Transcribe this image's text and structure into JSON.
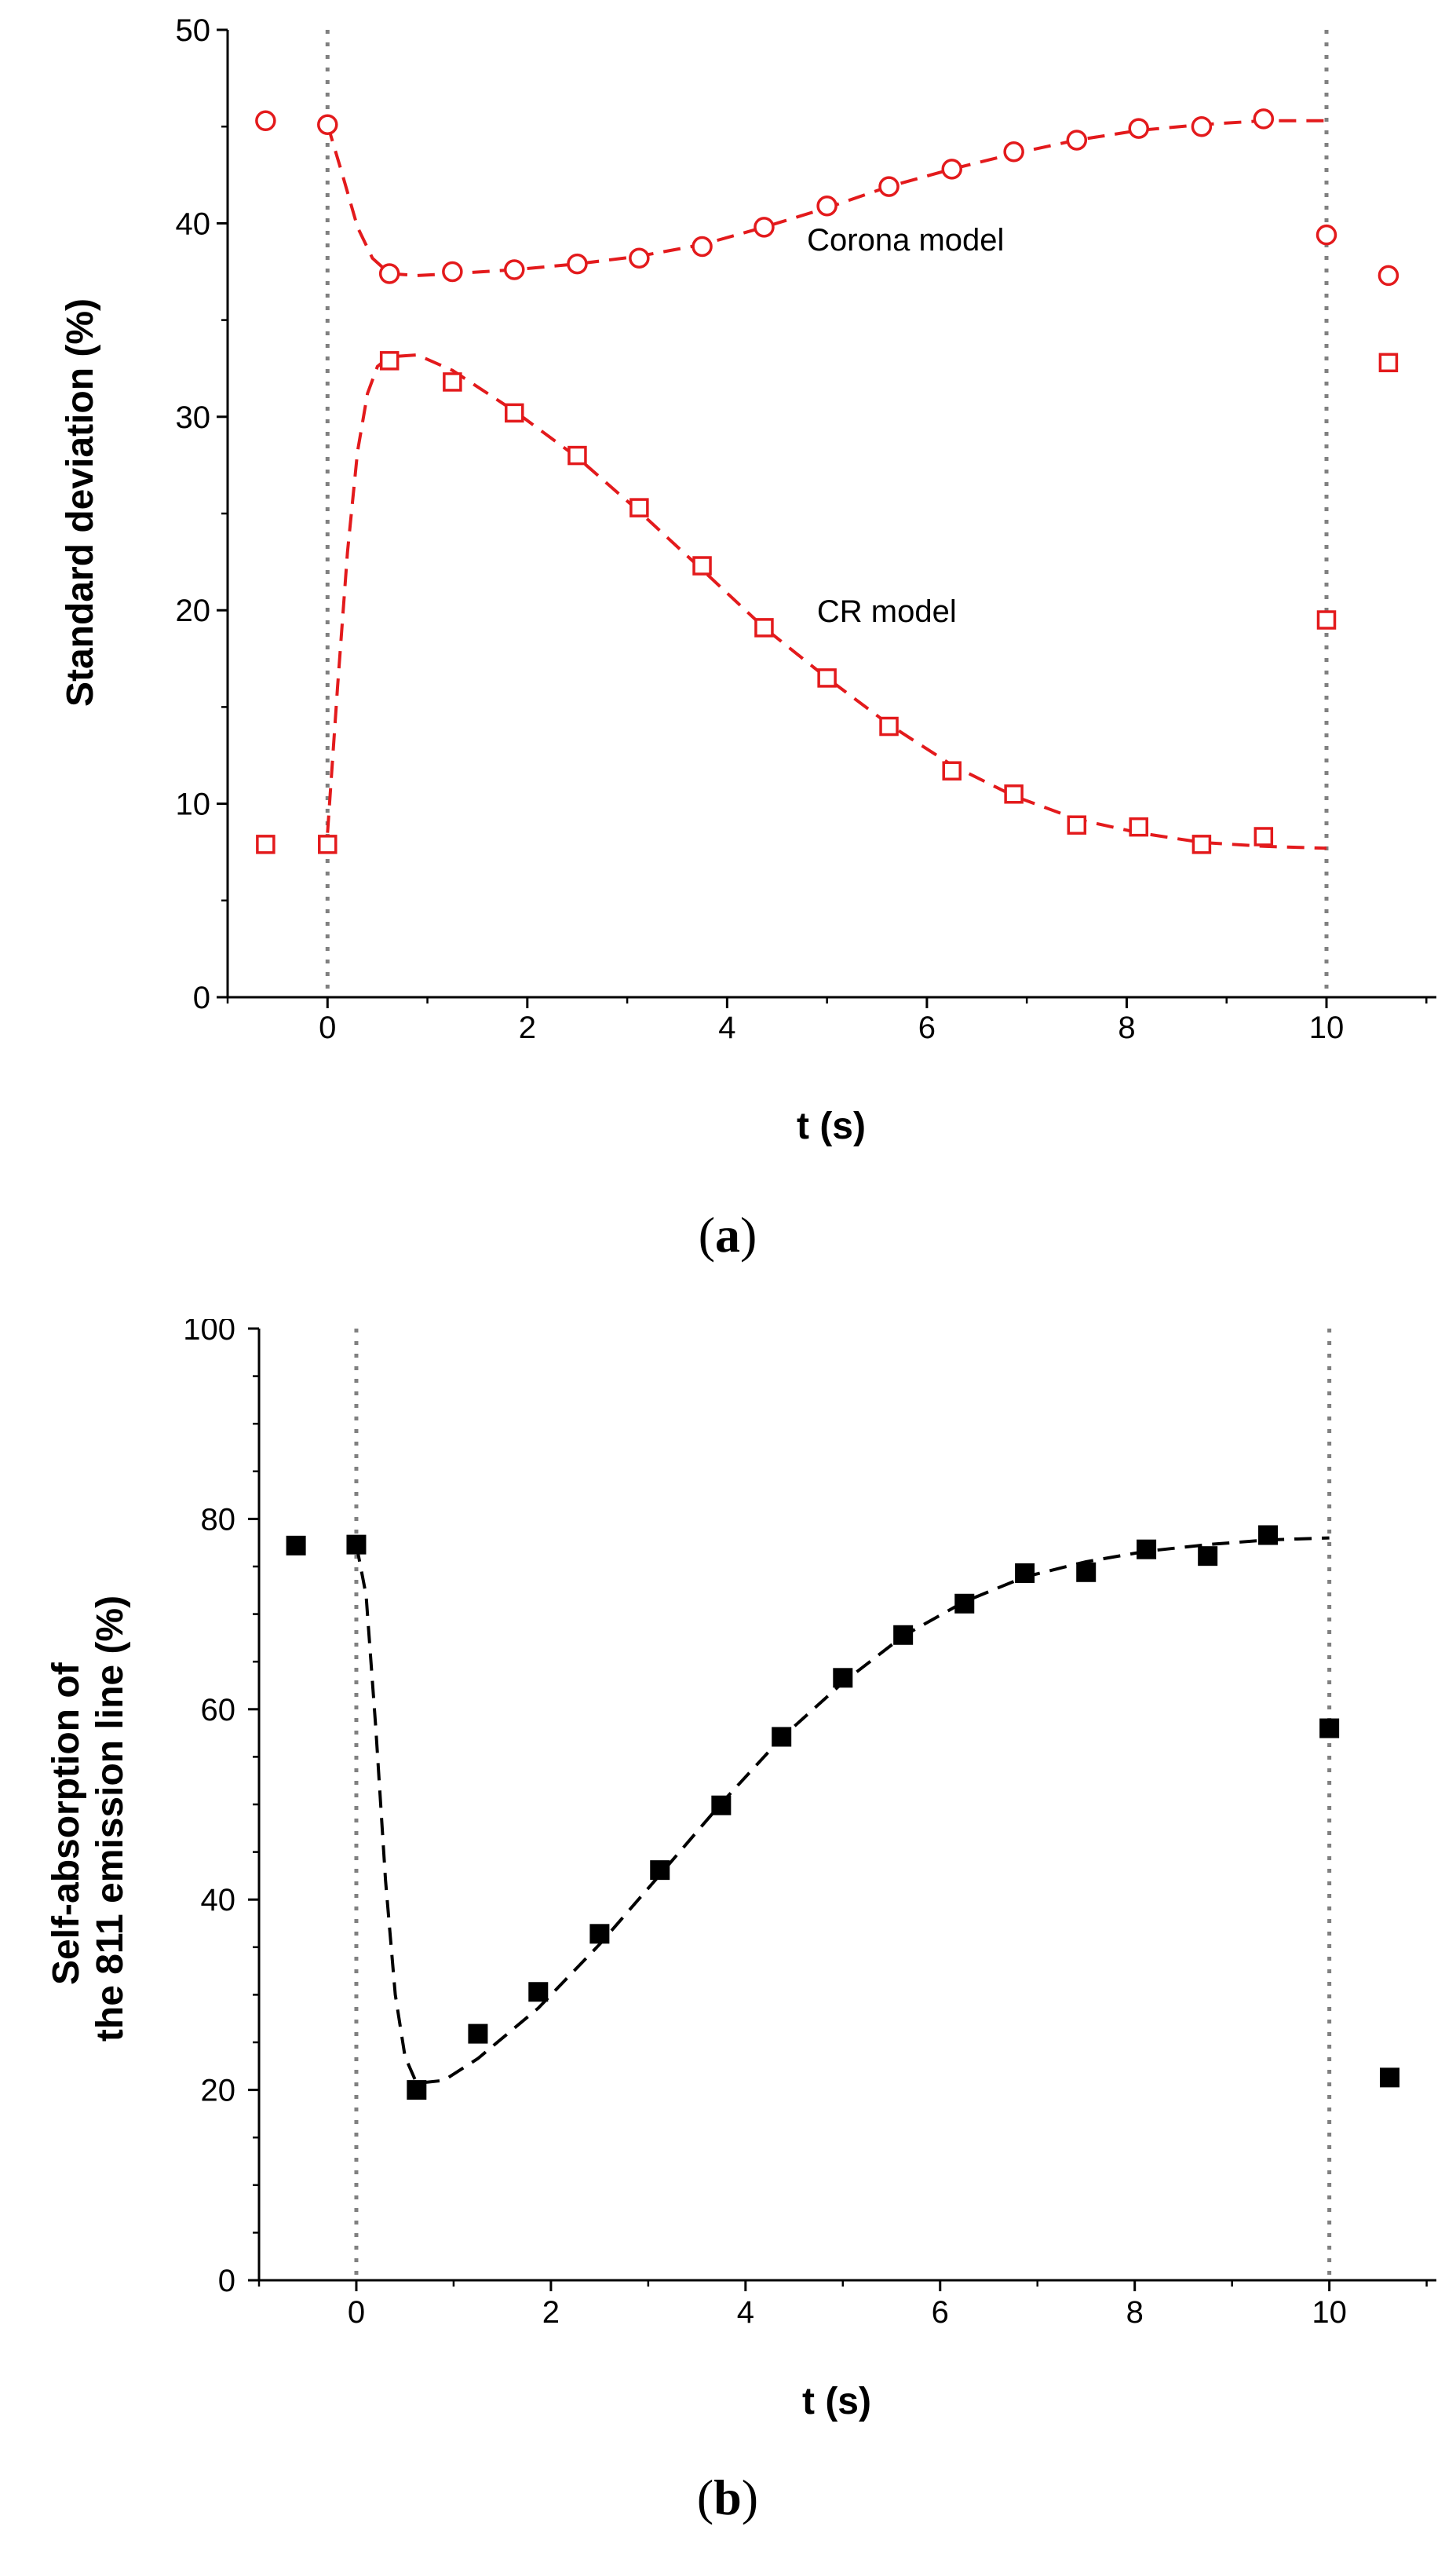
{
  "chart_data": [
    {
      "id": "a",
      "type": "scatter",
      "panel_label": "a",
      "xlabel": "t (s)",
      "ylabel": "Standard deviation (%)",
      "xlim": [
        -1,
        11.1
      ],
      "ylim": [
        0,
        50
      ],
      "xticks": [
        0,
        2,
        4,
        6,
        8,
        10
      ],
      "yticks": [
        0,
        10,
        20,
        30,
        40,
        50
      ],
      "grid": false,
      "vlines": [
        0,
        10
      ],
      "series": [
        {
          "name": "Corona model",
          "marker": "circle",
          "color": "#e31a1c",
          "x": [
            -0.62,
            0,
            0.62,
            1.25,
            1.87,
            2.5,
            3.12,
            3.75,
            4.37,
            5.0,
            5.62,
            6.25,
            6.87,
            7.5,
            8.12,
            8.75,
            9.37,
            10.0,
            10.62
          ],
          "y": [
            45.3,
            45.1,
            37.4,
            37.5,
            37.6,
            37.9,
            38.2,
            38.8,
            39.8,
            40.9,
            41.9,
            42.8,
            43.7,
            44.3,
            44.9,
            45.0,
            45.4,
            39.4,
            37.3
          ],
          "fit": {
            "x": [
              0,
              0.15,
              0.3,
              0.45,
              0.62,
              0.9,
              1.25,
              1.87,
              2.5,
              3.12,
              3.75,
              4.37,
              5.0,
              5.62,
              6.25,
              6.87,
              7.5,
              8.12,
              8.75,
              9.37,
              10.0
            ],
            "y": [
              45.1,
              42.5,
              39.8,
              38.2,
              37.4,
              37.3,
              37.4,
              37.6,
              37.9,
              38.3,
              38.9,
              39.8,
              40.8,
              41.9,
              42.8,
              43.6,
              44.3,
              44.8,
              45.1,
              45.3,
              45.3
            ]
          },
          "label_pos": {
            "x": 4.8,
            "y": 38.6
          }
        },
        {
          "name": "CR model",
          "marker": "square",
          "color": "#e31a1c",
          "x": [
            -0.62,
            0,
            0.62,
            1.25,
            1.87,
            2.5,
            3.12,
            3.75,
            4.37,
            5.0,
            5.62,
            6.25,
            6.87,
            7.5,
            8.12,
            8.75,
            9.37,
            10.0,
            10.62
          ],
          "y": [
            7.9,
            7.9,
            32.9,
            31.8,
            30.2,
            28.0,
            25.3,
            22.3,
            19.1,
            16.5,
            14.0,
            11.7,
            10.5,
            8.9,
            8.8,
            7.9,
            8.3,
            19.5,
            32.8
          ],
          "fit": {
            "x": [
              0,
              0.1,
              0.2,
              0.3,
              0.4,
              0.5,
              0.62,
              0.9,
              1.25,
              1.87,
              2.5,
              3.12,
              3.75,
              4.37,
              5.0,
              5.62,
              6.25,
              6.87,
              7.5,
              8.12,
              8.75,
              9.37,
              10.0
            ],
            "y": [
              8.5,
              16.0,
              23.0,
              28.2,
              31.2,
              32.6,
              33.1,
              33.2,
              32.4,
              30.3,
              27.9,
              25.1,
              22.1,
              19.1,
              16.5,
              14.1,
              12.0,
              10.4,
              9.2,
              8.5,
              8.0,
              7.8,
              7.7
            ]
          },
          "label_pos": {
            "x": 4.9,
            "y": 19.4
          }
        }
      ]
    },
    {
      "id": "b",
      "type": "scatter",
      "panel_label": "b",
      "xlabel": "t (s)",
      "ylabel": [
        "Self-absorption of",
        "the 811 emission line (%)"
      ],
      "xlim": [
        -1,
        11.1
      ],
      "ylim": [
        0,
        100
      ],
      "xticks": [
        0,
        2,
        4,
        6,
        8,
        10
      ],
      "yticks": [
        0,
        20,
        40,
        60,
        80,
        100
      ],
      "grid": false,
      "vlines": [
        0,
        10
      ],
      "series": [
        {
          "name": "Self-absorption",
          "marker": "filled-square",
          "color": "#000000",
          "x": [
            -0.62,
            0,
            0.62,
            1.25,
            1.87,
            2.5,
            3.12,
            3.75,
            4.37,
            5.0,
            5.62,
            6.25,
            6.87,
            7.5,
            8.12,
            8.75,
            9.37,
            10.0,
            10.62
          ],
          "y": [
            77.2,
            77.3,
            20.0,
            25.9,
            30.3,
            36.4,
            43.1,
            49.9,
            57.1,
            63.3,
            67.8,
            71.1,
            74.3,
            74.4,
            76.8,
            76.1,
            78.3,
            58.0,
            21.3
          ],
          "fit": {
            "x": [
              0,
              0.1,
              0.2,
              0.3,
              0.4,
              0.5,
              0.62,
              0.9,
              1.25,
              1.87,
              2.5,
              3.12,
              3.75,
              4.37,
              5.0,
              5.62,
              6.25,
              6.87,
              7.5,
              8.12,
              8.75,
              9.37,
              10.0
            ],
            "y": [
              77.3,
              72.0,
              58.0,
              42.0,
              30.0,
              23.5,
              20.7,
              21.0,
              23.3,
              28.6,
              35.3,
              42.6,
              50.1,
              57.0,
              62.8,
              67.7,
              71.3,
              73.9,
              75.5,
              76.6,
              77.3,
              77.8,
              78.0
            ]
          }
        }
      ]
    }
  ]
}
